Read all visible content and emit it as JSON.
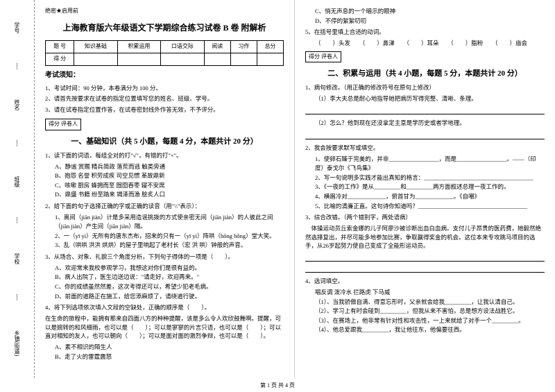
{
  "binding": {
    "labels": [
      "学号",
      "姓名",
      "班级",
      "学校",
      "乡镇(街道)"
    ],
    "marks": [
      "题",
      "答",
      "准",
      "不",
      "内",
      "线",
      "封",
      "密"
    ]
  },
  "secret": "绝密★启用前",
  "title": "上海教育版六年级语文下学期综合练习试卷 B 卷 附解析",
  "score_table": {
    "headers": [
      "题 号",
      "知识基础",
      "积累运用",
      "口语交际",
      "阅读",
      "习作",
      "总分"
    ],
    "row2": "得 分"
  },
  "notice": {
    "title": "考试须知：",
    "items": [
      "1、考试时间：90 分钟，本卷满分为 100 分。",
      "2、请首先按要求在试卷的指定位置填写您的姓名、班级、学号。",
      "3、请在试卷指定位置作答，在试卷密封线外作答无效，不予评分。"
    ]
  },
  "scorer_label": "得分  评卷人",
  "section1": {
    "title": "一、基础知识（共 5 小题，每题 4 分，本题共计 20 分）",
    "q1": {
      "stem": "1、读下面的词语，每组全对的打\"√\"，有错的打\"×\"。",
      "lines": [
        "A、静谧    赏赐    精兵简政    落荒而逃    触类旁通",
        "B、抱怨    名誉    积劳成疾    司空见惯    革故鼎新",
        "C、咳嗽    厨房    蜂拥而至    囫囵吞枣    寝不安席",
        "D、鼎盛    书籍    纷至踏来    竭泽而渔    脍炙人口"
      ],
      "tail": "（　　）（　　）（　　）（　　）"
    },
    "q2": {
      "stem": "2、给下面的句子选择正确的字或正确的读音（用\"\\\\\"表示）：",
      "lines": [
        "1、离间（jiān  jiàn）计是多采用造谣挑拨的方式使亲密无间（jiān  jiàn）的人彼此之间（jiān  jiàn）产生间（jiān  jiàn）隔。",
        "2、一（yī  yì）无所有的唐东杰布，招来的只有一（yī  yì）阵哄（hōng hǒng）堂大笑。",
        "3、乱（哄哄  洪洪  烘烘）的屋子里响起了老村长（宏  洪  哄）钟般的声音。"
      ]
    },
    "q3": {
      "stem": "3、从场合、对象、礼貌三个角度分析，下列句子得体的一项是（　　）。",
      "opts": [
        "A、欢迎常来我校参观学习，我想这对你们是很有益的。",
        "B、病人出院了，医生边送边说：\"请走好，欢迎再来。\"",
        "C、你的成绩虽然然差，这次考得还可以，希望少犯老毛病。",
        "D、前面的道路正在施工，给您添麻烦了，请绕道行驶。"
      ]
    },
    "q4": {
      "stem": "4、将下列选项依次填入文段的空缺处，正确的顺序是（　　）。",
      "text": "在生命的旅程中，能拥有那来自四面八方的种种提醒，该是多么令人欢欣鼓舞啊。提醒，可以是婉转的和风细雨，也可以是（　　）；可以是寥寥的片言只语，也可以是（　　）；可以直对相知的友人，也可以朝向（　　）；可以是面对面的激烈争辩，也可以是（　　）。",
      "opts": [
        "A、素不相识的陌生人",
        "B、走了火的雷霆震怒"
      ]
    }
  },
  "col2": {
    "opts_cont": [
      "C、悄无声息的一个暗示的眼神",
      "D、不停的絮絮叨叨"
    ],
    "q5": {
      "stem": "5、在括号里填上合适的动词。",
      "line": "（　　）头发　　（　　）鼻涕　　（　　）耳朵　　（　　）脂粉　　（　　）庙会"
    },
    "section2": {
      "title": "二、积累与运用（共 4 小题，每题 5 分，本题共计 20 分）",
      "q1": {
        "stem": "1、病句修改。（用正确的修改符号在原句上修改）",
        "lines": [
          "（1）李大夫总是耐心地指导她把病历写得完整、清晰、条理。",
          "（2）怎么？他到现在还没拿定主意是学历史或者学地理。"
        ]
      },
      "q2": {
        "stem": "2、我会按要求默写或填空。",
        "lines": [
          "1、使卵石臻于完美的，并非_________________，而是_________________。——（印度）泰戈尔《飞鸟集》",
          "2、写一句说明多实践才能出真知的格言：_____________________________________",
          "3、《一夜的工作》是从_________和_________两方面叙述总理一夜工作的。",
          "4、横眉冷对_____________，俯首甘为_____________。《自嘲》",
          "5、比喻的清廉正直。这句诗你知道吗？_____________________________________"
        ]
      },
      "q3": {
        "stem": "3、综合改错。（两个错别字，两处语病）",
        "text": "体操运动员丘索金娜的儿子阿廖沙被诊断出血白血病。支付儿子昂贵的医药费，她毅然绝然选择复出，并尽可能多地参加比赛，争取赢得奖金的机会。这位本来专攻跳马项目的选手，从26岁起努力使自己变成了全能形运动员。"
      },
      "q4": {
        "stem": "4、选词填空。",
        "words": "唱反调    泼冷水    拦路虎    下马威",
        "lines": [
          "（1）、当我骄傲自满、得意忘形时，父亲就会给我_________，让我认清自己。",
          "（2）、学习上有时会碰到_________，但我从来不害怕，总是想方设法战胜它。",
          "（3）、在赛场上，他非常有针对性和攻击性，一上来就给了对手一个_________。",
          "（4）、他总爱跟我_________，我让他往东，他偏要往西。"
        ]
      }
    }
  },
  "footer": "第 1 页 共 4 页"
}
